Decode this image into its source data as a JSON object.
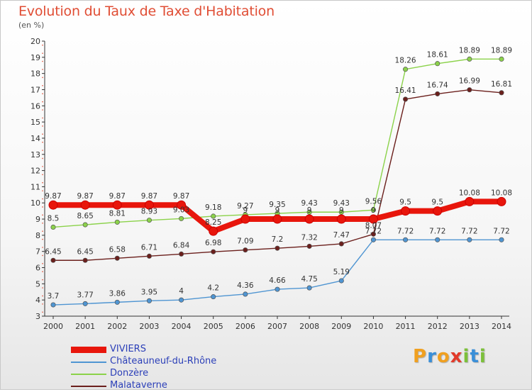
{
  "header": {
    "title": "Evolution du Taux de Taxe d'Habitation",
    "unit": "(en %)"
  },
  "logo": {
    "letters": [
      "P",
      "r",
      "o",
      "x",
      "i",
      "t",
      "i"
    ],
    "colors": [
      "#f0a020",
      "#3a8fd8",
      "#f0a020",
      "#e23a2a",
      "#7cc03a",
      "#3a8fd8",
      "#7cc03a"
    ]
  },
  "chart_data": {
    "type": "line",
    "categories": [
      "2000",
      "2001",
      "2002",
      "2003",
      "2004",
      "2005",
      "2006",
      "2007",
      "2008",
      "2009",
      "2010",
      "2011",
      "2012",
      "2013",
      "2014"
    ],
    "ylim": [
      3,
      20
    ],
    "yticks": [
      "3",
      "4",
      "5",
      "6",
      "7",
      "8",
      "9",
      "10",
      "11",
      "12",
      "13",
      "14",
      "15",
      "16",
      "17",
      "18",
      "19",
      "20"
    ],
    "grid": false,
    "legend_position": "bottom-left",
    "series": [
      {
        "name": "VIVIERS",
        "color": "#e8160c",
        "values": [
          9.87,
          9.87,
          9.87,
          9.87,
          9.87,
          8.25,
          9,
          9,
          9,
          9,
          9,
          9.5,
          9.5,
          10.08,
          10.08
        ],
        "labels": [
          "9.87",
          "9.87",
          "9.87",
          "9.87",
          "9.87",
          "8.25",
          "9",
          "9",
          "9",
          "9",
          "9",
          "9.5",
          "9.5",
          "10.08",
          "10.08"
        ]
      },
      {
        "name": "Châteauneuf-du-Rhône",
        "color": "#4f95d2",
        "values": [
          3.7,
          3.77,
          3.86,
          3.95,
          4,
          4.2,
          4.36,
          4.66,
          4.75,
          5.19,
          7.72,
          7.72,
          7.72,
          7.72,
          7.72
        ],
        "labels": [
          "3.7",
          "3.77",
          "3.86",
          "3.95",
          "4",
          "4.2",
          "4.36",
          "4.66",
          "4.75",
          "5.19",
          "7.72",
          "7.72",
          "7.72",
          "7.72",
          "7.72"
        ]
      },
      {
        "name": "Donzère",
        "color": "#8bd24a",
        "values": [
          8.5,
          8.65,
          8.81,
          8.93,
          9.03,
          9.18,
          9.27,
          9.35,
          9.43,
          9.43,
          9.56,
          18.26,
          18.61,
          18.89,
          18.89
        ],
        "labels": [
          "8.5",
          "8.65",
          "8.81",
          "8.93",
          "9.03",
          "9.18",
          "9.27",
          "9.35",
          "9.43",
          "9.43",
          "9.56",
          "18.26",
          "18.61",
          "18.89",
          "18.89"
        ]
      },
      {
        "name": "Malataverne",
        "color": "#6b1f1c",
        "values": [
          6.45,
          6.45,
          6.58,
          6.71,
          6.84,
          6.98,
          7.09,
          7.2,
          7.32,
          7.47,
          8.07,
          16.41,
          16.74,
          16.99,
          16.81
        ],
        "labels": [
          "6.45",
          "6.45",
          "6.58",
          "6.71",
          "6.84",
          "6.98",
          "7.09",
          "7.2",
          "7.32",
          "7.47",
          "8.07",
          "16.41",
          "16.74",
          "16.99",
          "16.81"
        ]
      }
    ]
  }
}
